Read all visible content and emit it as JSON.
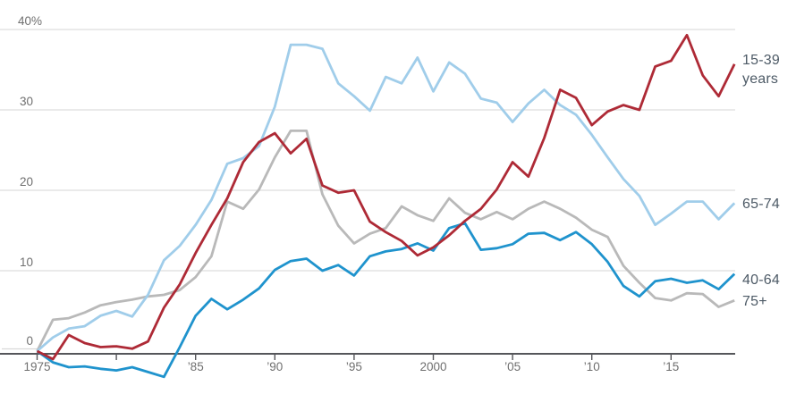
{
  "chart_data": {
    "type": "line",
    "title": "",
    "xlabel": "",
    "ylabel": "",
    "y_unit": "%",
    "ylim": [
      -4,
      41
    ],
    "xlim": [
      1975,
      2019
    ],
    "grid": "horizontal",
    "legend_position": "right-end-labels",
    "years": [
      1975,
      1976,
      1977,
      1978,
      1979,
      1980,
      1981,
      1982,
      1983,
      1984,
      1985,
      1986,
      1987,
      1988,
      1989,
      1990,
      1991,
      1992,
      1993,
      1994,
      1995,
      1996,
      1997,
      1998,
      1999,
      2000,
      2001,
      2002,
      2003,
      2004,
      2005,
      2006,
      2007,
      2008,
      2009,
      2010,
      2011,
      2012,
      2013,
      2014,
      2015,
      2016,
      2017,
      2018,
      2019
    ],
    "y_ticks": [
      {
        "value": 0,
        "label": "0"
      },
      {
        "value": 10,
        "label": "10"
      },
      {
        "value": 20,
        "label": "20"
      },
      {
        "value": 30,
        "label": "30"
      },
      {
        "value": 40,
        "label": "40%"
      }
    ],
    "x_ticks": [
      {
        "year": 1975,
        "label": "1975"
      },
      {
        "year": 1980,
        "label": ""
      },
      {
        "year": 1985,
        "label": "’85"
      },
      {
        "year": 1990,
        "label": "’90"
      },
      {
        "year": 1995,
        "label": "’95"
      },
      {
        "year": 2000,
        "label": "2000"
      },
      {
        "year": 2005,
        "label": "’05"
      },
      {
        "year": 2010,
        "label": "’10"
      },
      {
        "year": 2015,
        "label": "’15"
      }
    ],
    "series": [
      {
        "name": "15-39 years",
        "label": "15-39 years",
        "slug": "15-39-years",
        "color": "#ae2a36",
        "values": [
          0,
          -1,
          2,
          1,
          0.5,
          0.6,
          0.3,
          1.2,
          5.4,
          8.3,
          12.2,
          15.7,
          19,
          23.5,
          26,
          27.1,
          24.6,
          26.4,
          20.6,
          19.7,
          20,
          16.1,
          14.8,
          13.7,
          11.9,
          12.9,
          14.4,
          16.2,
          17.7,
          20.1,
          23.5,
          21.7,
          26.5,
          32.5,
          31.5,
          28.1,
          29.8,
          30.6,
          30,
          35.4,
          36.1,
          39.3,
          34.3,
          31.7,
          35.7
        ]
      },
      {
        "name": "65-74",
        "label": "65-74",
        "slug": "65-74",
        "color": "#a0cdea",
        "values": [
          0,
          1.7,
          2.8,
          3.1,
          4.4,
          5,
          4.3,
          7,
          11.3,
          13.1,
          15.7,
          18.8,
          23.3,
          24,
          25.5,
          30.4,
          38.1,
          38.1,
          37.6,
          33.3,
          31.7,
          29.9,
          34.1,
          33.3,
          36.5,
          32.3,
          35.9,
          34.5,
          31.4,
          30.9,
          28.5,
          30.8,
          32.5,
          30.6,
          29.4,
          26.9,
          24.1,
          21.4,
          19.3,
          15.7,
          17.1,
          18.6,
          18.6,
          16.4,
          18.4
        ]
      },
      {
        "name": "40-64",
        "label": "40-64",
        "slug": "40-64",
        "color": "#1f93cd",
        "values": [
          0,
          -1.4,
          -2,
          -1.9,
          -2.2,
          -2.4,
          -2,
          -2.6,
          -3.2,
          0.5,
          4.4,
          6.5,
          5.2,
          6.4,
          7.8,
          10.1,
          11.2,
          11.5,
          10,
          10.7,
          9.4,
          11.8,
          12.4,
          12.7,
          13.4,
          12.5,
          15.3,
          15.9,
          12.6,
          12.8,
          13.3,
          14.6,
          14.7,
          13.8,
          14.8,
          13.3,
          11.1,
          8.1,
          6.8,
          8.7,
          9,
          8.5,
          8.8,
          7.7,
          9.6
        ]
      },
      {
        "name": "75+",
        "label": "75+",
        "slug": "75-plus",
        "color": "#b9b9b9",
        "values": [
          0,
          3.9,
          4.1,
          4.8,
          5.7,
          6.1,
          6.4,
          6.8,
          7,
          7.6,
          9.2,
          11.8,
          18.6,
          17.7,
          20.1,
          24.1,
          27.4,
          27.4,
          19.5,
          15.6,
          13.4,
          14.6,
          15.3,
          18,
          16.9,
          16.2,
          19,
          17.2,
          16.4,
          17.3,
          16.4,
          17.7,
          18.6,
          17.7,
          16.6,
          15.1,
          14.2,
          10.6,
          8.5,
          6.6,
          6.3,
          7.2,
          7.1,
          5.5,
          6.3
        ]
      }
    ]
  },
  "colors": {
    "background": "#ffffff",
    "grid": "#dedede",
    "zero_grid": "#d9d9d9",
    "axis": "#55565a",
    "tick_text": "#6f6f6f",
    "label_text": "#4d5a66"
  }
}
